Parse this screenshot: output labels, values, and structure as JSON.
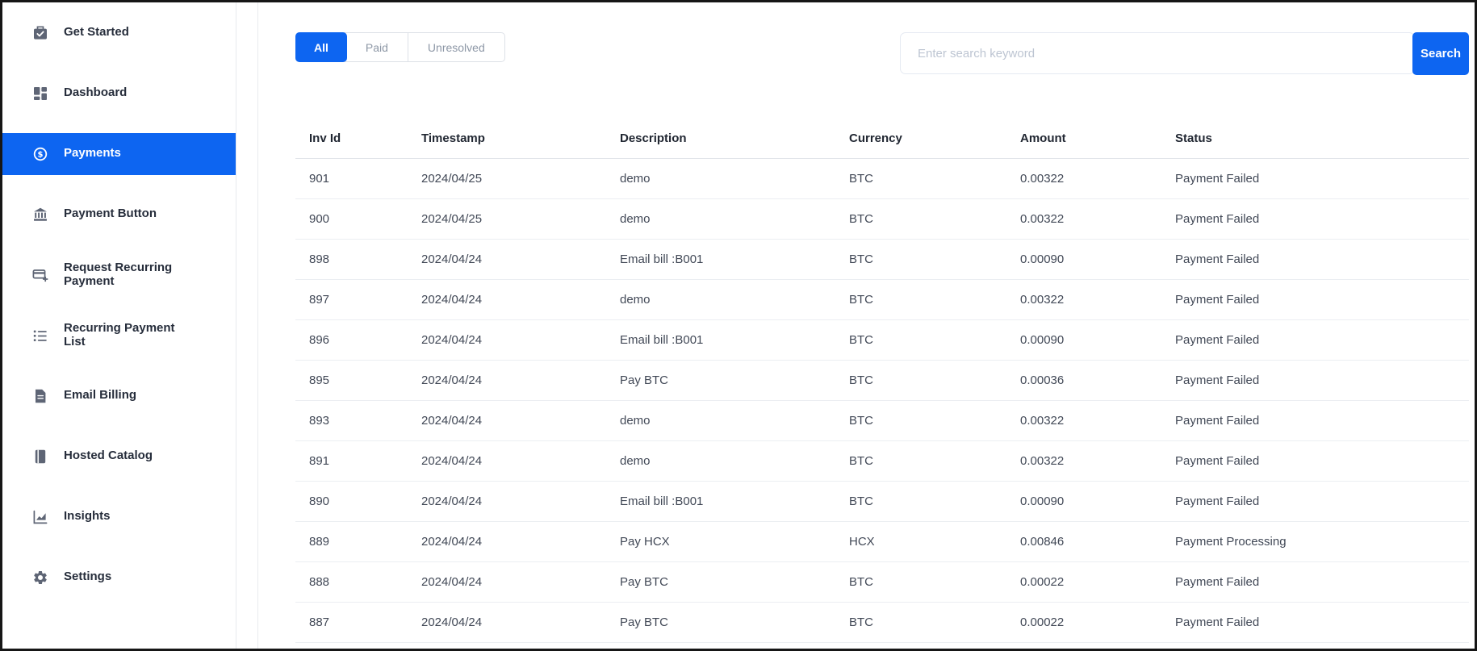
{
  "sidebar": {
    "items": [
      {
        "label": "Get Started",
        "icon": "clipboard-check-icon",
        "active": false
      },
      {
        "label": "Dashboard",
        "icon": "grid-icon",
        "active": false
      },
      {
        "label": "Payments",
        "icon": "dollar-circle-icon",
        "active": true
      },
      {
        "label": "Payment Button",
        "icon": "bank-icon",
        "active": false
      },
      {
        "label": "Request Recurring Payment",
        "icon": "card-plus-icon",
        "active": false
      },
      {
        "label": "Recurring Payment List",
        "icon": "list-icon",
        "active": false
      },
      {
        "label": "Email Billing",
        "icon": "file-icon",
        "active": false
      },
      {
        "label": "Hosted Catalog",
        "icon": "book-icon",
        "active": false
      },
      {
        "label": "Insights",
        "icon": "chart-icon",
        "active": false
      },
      {
        "label": "Settings",
        "icon": "gear-icon",
        "active": false
      }
    ]
  },
  "toolbar": {
    "filter_tabs": [
      {
        "label": "All",
        "active": true
      },
      {
        "label": "Paid",
        "active": false
      },
      {
        "label": "Unresolved",
        "active": false
      }
    ],
    "search": {
      "placeholder": "Enter search keyword",
      "button_label": "Search"
    }
  },
  "table": {
    "columns": [
      "Inv Id",
      "Timestamp",
      "Description",
      "Currency",
      "Amount",
      "Status"
    ],
    "rows": [
      {
        "inv_id": "901",
        "timestamp": "2024/04/25",
        "description": "demo",
        "currency": "BTC",
        "amount": "0.00322",
        "status": "Payment Failed",
        "status_type": "failed"
      },
      {
        "inv_id": "900",
        "timestamp": "2024/04/25",
        "description": "demo",
        "currency": "BTC",
        "amount": "0.00322",
        "status": "Payment Failed",
        "status_type": "failed"
      },
      {
        "inv_id": "898",
        "timestamp": "2024/04/24",
        "description": "Email bill :B001",
        "currency": "BTC",
        "amount": "0.00090",
        "status": "Payment Failed",
        "status_type": "failed"
      },
      {
        "inv_id": "897",
        "timestamp": "2024/04/24",
        "description": "demo",
        "currency": "BTC",
        "amount": "0.00322",
        "status": "Payment Failed",
        "status_type": "failed"
      },
      {
        "inv_id": "896",
        "timestamp": "2024/04/24",
        "description": "Email bill :B001",
        "currency": "BTC",
        "amount": "0.00090",
        "status": "Payment Failed",
        "status_type": "failed"
      },
      {
        "inv_id": "895",
        "timestamp": "2024/04/24",
        "description": "Pay BTC",
        "currency": "BTC",
        "amount": "0.00036",
        "status": "Payment Failed",
        "status_type": "failed"
      },
      {
        "inv_id": "893",
        "timestamp": "2024/04/24",
        "description": "demo",
        "currency": "BTC",
        "amount": "0.00322",
        "status": "Payment Failed",
        "status_type": "failed"
      },
      {
        "inv_id": "891",
        "timestamp": "2024/04/24",
        "description": "demo",
        "currency": "BTC",
        "amount": "0.00322",
        "status": "Payment Failed",
        "status_type": "failed"
      },
      {
        "inv_id": "890",
        "timestamp": "2024/04/24",
        "description": "Email bill :B001",
        "currency": "BTC",
        "amount": "0.00090",
        "status": "Payment Failed",
        "status_type": "failed"
      },
      {
        "inv_id": "889",
        "timestamp": "2024/04/24",
        "description": "Pay HCX",
        "currency": "HCX",
        "amount": "0.00846",
        "status": "Payment Processing",
        "status_type": "processing"
      },
      {
        "inv_id": "888",
        "timestamp": "2024/04/24",
        "description": "Pay BTC",
        "currency": "BTC",
        "amount": "0.00022",
        "status": "Payment Failed",
        "status_type": "failed"
      },
      {
        "inv_id": "887",
        "timestamp": "2024/04/24",
        "description": "Pay BTC",
        "currency": "BTC",
        "amount": "0.00022",
        "status": "Payment Failed",
        "status_type": "failed"
      }
    ]
  },
  "colors": {
    "primary_blue": "#0d65f1",
    "status_failed": "#f1416c",
    "status_processing": "#35c7f3",
    "sidebar_icon": "#5e6575",
    "sidebar_text": "#262d3b"
  }
}
